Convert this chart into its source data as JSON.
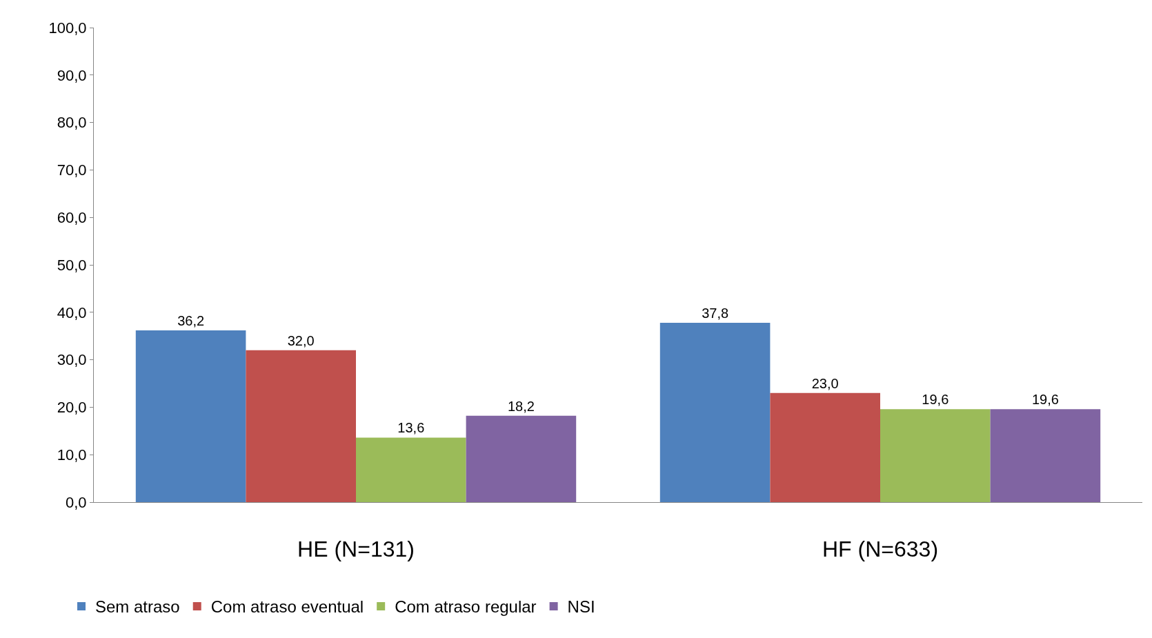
{
  "chart_data": {
    "type": "bar",
    "categories": [
      "HE (N=131)",
      "HF (N=633)"
    ],
    "series": [
      {
        "name": "Sem atraso",
        "color": "#4f81bd",
        "values": [
          36.2,
          37.8
        ],
        "value_labels": [
          "36,2",
          "37,8"
        ]
      },
      {
        "name": "Com atraso eventual",
        "color": "#c0504d",
        "values": [
          32.0,
          23.0
        ],
        "value_labels": [
          "32,0",
          "23,0"
        ]
      },
      {
        "name": "Com atraso regular",
        "color": "#9bbb59",
        "values": [
          13.6,
          19.6
        ],
        "value_labels": [
          "13,6",
          "19,6"
        ]
      },
      {
        "name": "NSI",
        "color": "#8064a2",
        "values": [
          18.2,
          19.6
        ],
        "value_labels": [
          "18,2",
          "19,6"
        ]
      }
    ],
    "ylim": [
      0,
      100
    ],
    "yticks": [
      {
        "value": 0,
        "label": "0,0"
      },
      {
        "value": 10,
        "label": "10,0"
      },
      {
        "value": 20,
        "label": "20,0"
      },
      {
        "value": 30,
        "label": "30,0"
      },
      {
        "value": 40,
        "label": "40,0"
      },
      {
        "value": 50,
        "label": "50,0"
      },
      {
        "value": 60,
        "label": "60,0"
      },
      {
        "value": 70,
        "label": "70,0"
      },
      {
        "value": 80,
        "label": "80,0"
      },
      {
        "value": 90,
        "label": "90,0"
      },
      {
        "value": 100,
        "label": "100,0"
      }
    ],
    "grid": false,
    "legend": "bottom"
  }
}
